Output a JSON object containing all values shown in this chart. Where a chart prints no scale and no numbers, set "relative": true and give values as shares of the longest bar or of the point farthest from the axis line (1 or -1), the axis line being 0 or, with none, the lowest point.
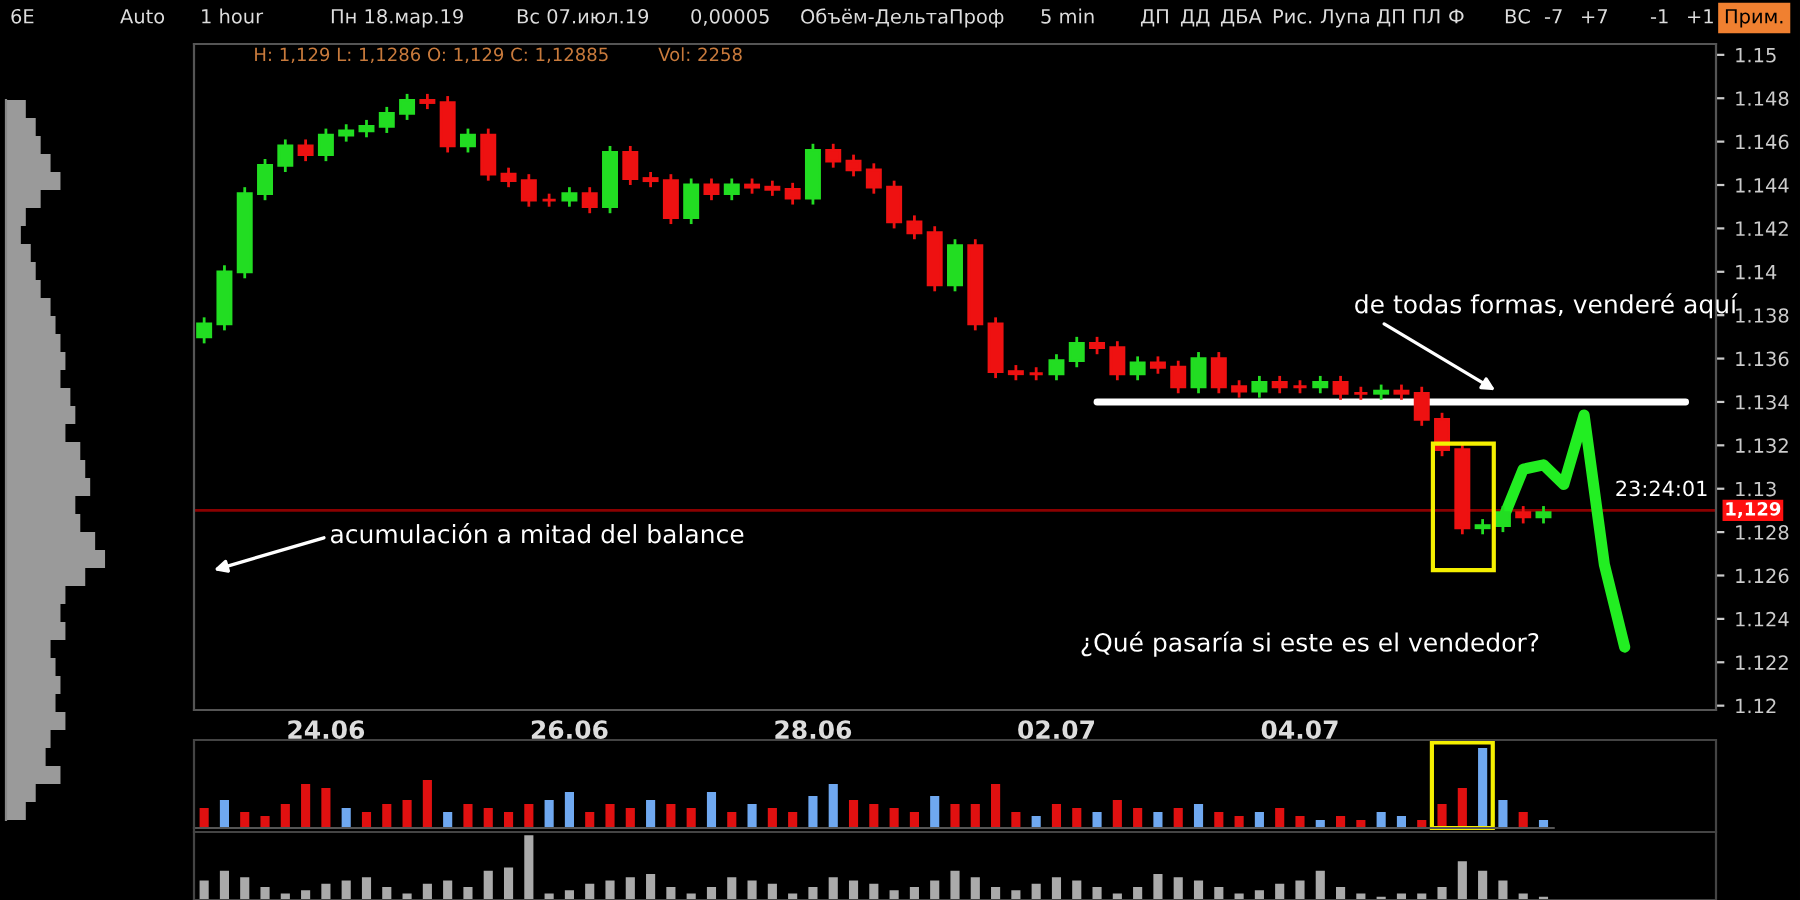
{
  "chart_data": [
    {
      "type": "other",
      "annotations": [
        "6E",
        "Auto",
        "1 hour",
        "Пн 18.мар.19",
        "Вс 07.июл.19",
        "0,00005",
        "Объём-ДельтаПроф",
        "5 min",
        "ДП",
        "ДД",
        "ДБА",
        "Рис.",
        "Лупа",
        "ДП",
        "ПЛ",
        "Ф",
        "ВС",
        "-7",
        "+7",
        "-1",
        "+1",
        "Прим."
      ]
    },
    {
      "type": "candlestick",
      "categories": [
        null,
        null,
        null,
        null,
        null,
        null,
        "24.06",
        null,
        null,
        null,
        null,
        null,
        null,
        null,
        null,
        null,
        null,
        null,
        "26.06",
        null,
        null,
        null,
        null,
        null,
        null,
        null,
        null,
        null,
        null,
        null,
        "28.06",
        null,
        null,
        null,
        null,
        null,
        null,
        null,
        null,
        null,
        null,
        null,
        "02.07",
        null,
        null,
        null,
        null,
        null,
        null,
        null,
        null,
        null,
        null,
        null,
        "04.07",
        null,
        null,
        null,
        null,
        null,
        null,
        null,
        null,
        null,
        null,
        null,
        null,
        null,
        null,
        null,
        null,
        null,
        null,
        null,
        null
      ],
      "ohlc": [
        [
          1.137,
          1.1379,
          1.1367,
          1.1376
        ],
        [
          1.1376,
          1.1403,
          1.1373,
          1.14
        ],
        [
          1.14,
          1.1439,
          1.1397,
          1.1436
        ],
        [
          1.1436,
          1.1452,
          1.1433,
          1.1449
        ],
        [
          1.1449,
          1.1461,
          1.1446,
          1.1458
        ],
        [
          1.1458,
          1.1461,
          1.1451,
          1.1454
        ],
        [
          1.1454,
          1.1466,
          1.1451,
          1.1463
        ],
        [
          1.1463,
          1.1468,
          1.146,
          1.1465
        ],
        [
          1.1465,
          1.147,
          1.1462,
          1.1467
        ],
        [
          1.1467,
          1.1476,
          1.1464,
          1.1473
        ],
        [
          1.1473,
          1.1482,
          1.147,
          1.1479
        ],
        [
          1.1479,
          1.1482,
          1.1475,
          1.1478
        ],
        [
          1.1478,
          1.1481,
          1.1455,
          1.1458
        ],
        [
          1.1458,
          1.1466,
          1.1455,
          1.1463
        ],
        [
          1.1463,
          1.1466,
          1.1442,
          1.1445
        ],
        [
          1.1445,
          1.1448,
          1.1439,
          1.1442
        ],
        [
          1.1442,
          1.1445,
          1.143,
          1.1433
        ],
        [
          1.1433,
          1.1436,
          1.143,
          1.1433
        ],
        [
          1.1433,
          1.1439,
          1.143,
          1.1436
        ],
        [
          1.1436,
          1.1439,
          1.1427,
          1.143
        ],
        [
          1.143,
          1.1458,
          1.1427,
          1.1455
        ],
        [
          1.1455,
          1.1458,
          1.144,
          1.1443
        ],
        [
          1.1443,
          1.1446,
          1.1439,
          1.1442
        ],
        [
          1.1442,
          1.1445,
          1.1422,
          1.1425
        ],
        [
          1.1425,
          1.1443,
          1.1422,
          1.144
        ],
        [
          1.144,
          1.1443,
          1.1433,
          1.1436
        ],
        [
          1.1436,
          1.1443,
          1.1433,
          1.144
        ],
        [
          1.144,
          1.1443,
          1.1436,
          1.1439
        ],
        [
          1.1439,
          1.1442,
          1.1435,
          1.1438
        ],
        [
          1.1438,
          1.1441,
          1.1431,
          1.1434
        ],
        [
          1.1434,
          1.1459,
          1.1431,
          1.1456
        ],
        [
          1.1456,
          1.1459,
          1.1448,
          1.1451
        ],
        [
          1.1451,
          1.1454,
          1.1444,
          1.1447
        ],
        [
          1.1447,
          1.145,
          1.1436,
          1.1439
        ],
        [
          1.1439,
          1.1442,
          1.142,
          1.1423
        ],
        [
          1.1423,
          1.1426,
          1.1415,
          1.1418
        ],
        [
          1.1418,
          1.1421,
          1.1391,
          1.1394
        ],
        [
          1.1394,
          1.1415,
          1.1391,
          1.1412
        ],
        [
          1.1412,
          1.1415,
          1.1373,
          1.1376
        ],
        [
          1.1376,
          1.1379,
          1.1351,
          1.1354
        ],
        [
          1.1354,
          1.1357,
          1.135,
          1.1353
        ],
        [
          1.1353,
          1.1356,
          1.135,
          1.1353
        ],
        [
          1.1353,
          1.1362,
          1.135,
          1.1359
        ],
        [
          1.1359,
          1.137,
          1.1356,
          1.1367
        ],
        [
          1.1367,
          1.137,
          1.1362,
          1.1365
        ],
        [
          1.1365,
          1.1368,
          1.135,
          1.1353
        ],
        [
          1.1353,
          1.1361,
          1.135,
          1.1358
        ],
        [
          1.1358,
          1.1361,
          1.1353,
          1.1356
        ],
        [
          1.1356,
          1.1359,
          1.1344,
          1.1347
        ],
        [
          1.1347,
          1.1363,
          1.1344,
          1.136
        ],
        [
          1.136,
          1.1363,
          1.1344,
          1.1347
        ],
        [
          1.1347,
          1.135,
          1.1342,
          1.1345
        ],
        [
          1.1345,
          1.1352,
          1.1342,
          1.1349
        ],
        [
          1.1349,
          1.1352,
          1.1344,
          1.1347
        ],
        [
          1.1347,
          1.135,
          1.1344,
          1.1347
        ],
        [
          1.1347,
          1.1352,
          1.1344,
          1.1349
        ],
        [
          1.1349,
          1.1352,
          1.1341,
          1.1344
        ],
        [
          1.1344,
          1.1347,
          1.1341,
          1.1344
        ],
        [
          1.1344,
          1.1348,
          1.1341,
          1.1345
        ],
        [
          1.1345,
          1.1348,
          1.1341,
          1.1344
        ],
        [
          1.1344,
          1.1347,
          1.1329,
          1.1332
        ],
        [
          1.1332,
          1.1335,
          1.1315,
          1.1318
        ],
        [
          1.1318,
          1.1321,
          1.1279,
          1.1282
        ],
        [
          1.1282,
          1.1286,
          1.1279,
          1.1283
        ],
        [
          1.1283,
          1.1292,
          1.128,
          1.1289
        ],
        [
          1.1289,
          1.1292,
          1.1284,
          1.1287
        ],
        [
          1.1287,
          1.1292,
          1.1284,
          1.1289
        ],
        null,
        null,
        null,
        null,
        null,
        null,
        null,
        null
      ],
      "colors": [
        "#22dd22",
        "#22dd22",
        "#22dd22",
        "#22dd22",
        "#22dd22",
        "#ee1111",
        "#22dd22",
        "#22dd22",
        "#22dd22",
        "#22dd22",
        "#22dd22",
        "#ee1111",
        "#ee1111",
        "#22dd22",
        "#ee1111",
        "#ee1111",
        "#ee1111",
        "#ee1111",
        "#22dd22",
        "#ee1111",
        "#22dd22",
        "#ee1111",
        "#ee1111",
        "#ee1111",
        "#22dd22",
        "#ee1111",
        "#22dd22",
        "#ee1111",
        "#ee1111",
        "#ee1111",
        "#22dd22",
        "#ee1111",
        "#ee1111",
        "#ee1111",
        "#ee1111",
        "#ee1111",
        "#ee1111",
        "#22dd22",
        "#ee1111",
        "#ee1111",
        "#ee1111",
        "#ee1111",
        "#22dd22",
        "#22dd22",
        "#ee1111",
        "#ee1111",
        "#22dd22",
        "#ee1111",
        "#ee1111",
        "#22dd22",
        "#ee1111",
        "#ee1111",
        "#22dd22",
        "#ee1111",
        "#ee1111",
        "#22dd22",
        "#ee1111",
        "#ee1111",
        "#22dd22",
        "#ee1111",
        "#ee1111",
        "#ee1111",
        "#ee1111",
        "#22dd22",
        "#22dd22",
        "#ee1111",
        "#22dd22",
        null,
        null,
        null,
        null,
        null,
        null,
        null,
        null
      ],
      "series": [
        {
          "type": "line",
          "color": "#ffffff",
          "values": [
            null,
            null,
            null,
            null,
            null,
            null,
            null,
            null,
            null,
            null,
            null,
            null,
            null,
            null,
            null,
            null,
            null,
            null,
            null,
            null,
            null,
            null,
            null,
            null,
            null,
            null,
            null,
            null,
            null,
            null,
            null,
            null,
            null,
            null,
            null,
            null,
            null,
            null,
            null,
            null,
            null,
            null,
            null,
            null,
            1.134,
            1.134,
            1.134,
            1.134,
            1.134,
            1.134,
            1.134,
            1.134,
            1.134,
            1.134,
            1.134,
            1.134,
            1.134,
            1.134,
            1.134,
            1.134,
            1.134,
            1.134,
            1.134,
            1.134,
            1.134,
            1.134,
            1.134,
            1.134,
            1.134,
            1.134,
            1.134,
            1.134,
            1.134,
            1.134,
            null
          ]
        },
        {
          "type": "line",
          "color": "#22ee22",
          "values": [
            null,
            null,
            null,
            null,
            null,
            null,
            null,
            null,
            null,
            null,
            null,
            null,
            null,
            null,
            null,
            null,
            null,
            null,
            null,
            null,
            null,
            null,
            null,
            null,
            null,
            null,
            null,
            null,
            null,
            null,
            null,
            null,
            null,
            null,
            null,
            null,
            null,
            null,
            null,
            null,
            null,
            null,
            null,
            null,
            null,
            null,
            null,
            null,
            null,
            null,
            null,
            null,
            null,
            null,
            null,
            null,
            null,
            null,
            null,
            null,
            null,
            null,
            null,
            null,
            1.1286,
            1.1309,
            1.1311,
            1.1302,
            1.1334,
            1.1265,
            1.1227,
            null,
            null,
            null,
            null
          ]
        }
      ],
      "ylim": [
        1.1198,
        1.1505
      ],
      "yticks": [
        1.12,
        1.122,
        1.124,
        1.126,
        1.128,
        1.13,
        1.132,
        1.134,
        1.136,
        1.138,
        1.14,
        1.142,
        1.144,
        1.146,
        1.148,
        1.15
      ],
      "ref_lines": [
        {
          "axis": "y",
          "value": 1.129,
          "label": "1,129",
          "color": "#8b0000"
        }
      ],
      "annotations": [
        "acumulación a mitad del balance",
        "de todas formas, venderé aquí",
        "¿Qué pasaría si este es el vendedor?",
        "23:24:01",
        "H: 1,129 L: 1,1286 O: 1,129 C: 1,12885",
        "Vol: 2258"
      ]
    },
    {
      "type": "bar",
      "relative": true,
      "categories": [
        null,
        null,
        null,
        null,
        null,
        null,
        null,
        null,
        null,
        null,
        null,
        null,
        null,
        null,
        null,
        null,
        null,
        null,
        null,
        null,
        null,
        null,
        null,
        null,
        null,
        null,
        null,
        null,
        null,
        null,
        null,
        null,
        null,
        null,
        null,
        null,
        null,
        null,
        null,
        null,
        null,
        null,
        null,
        null,
        null,
        null,
        null,
        null,
        null,
        null,
        null,
        null,
        null,
        null,
        null,
        null,
        null,
        null,
        null,
        null,
        null,
        null,
        null,
        null,
        null,
        null,
        null
      ],
      "values": [
        0.25,
        0.35,
        0.2,
        0.15,
        0.3,
        0.55,
        0.5,
        0.25,
        0.2,
        0.3,
        0.35,
        0.6,
        0.2,
        0.3,
        0.25,
        0.2,
        0.3,
        0.35,
        0.45,
        0.2,
        0.3,
        0.25,
        0.35,
        0.3,
        0.25,
        0.45,
        0.2,
        0.3,
        0.25,
        0.2,
        0.4,
        0.55,
        0.35,
        0.3,
        0.25,
        0.2,
        0.4,
        0.3,
        0.3,
        0.55,
        0.2,
        0.15,
        0.3,
        0.25,
        0.2,
        0.35,
        0.25,
        0.2,
        0.25,
        0.3,
        0.2,
        0.15,
        0.2,
        0.25,
        0.15,
        0.1,
        0.15,
        0.1,
        0.2,
        0.15,
        0.1,
        0.3,
        0.5,
        1.0,
        0.35,
        0.2,
        0.1
      ],
      "colors": [
        "#e01010",
        "#6fa8f0",
        "#e01010",
        "#e01010",
        "#e01010",
        "#e01010",
        "#e01010",
        "#6fa8f0",
        "#e01010",
        "#e01010",
        "#e01010",
        "#e01010",
        "#6fa8f0",
        "#e01010",
        "#e01010",
        "#e01010",
        "#e01010",
        "#6fa8f0",
        "#6fa8f0",
        "#e01010",
        "#e01010",
        "#e01010",
        "#6fa8f0",
        "#e01010",
        "#e01010",
        "#6fa8f0",
        "#e01010",
        "#6fa8f0",
        "#e01010",
        "#e01010",
        "#6fa8f0",
        "#6fa8f0",
        "#e01010",
        "#e01010",
        "#e01010",
        "#e01010",
        "#6fa8f0",
        "#e01010",
        "#e01010",
        "#e01010",
        "#e01010",
        "#6fa8f0",
        "#e01010",
        "#e01010",
        "#6fa8f0",
        "#e01010",
        "#e01010",
        "#6fa8f0",
        "#e01010",
        "#6fa8f0",
        "#e01010",
        "#e01010",
        "#6fa8f0",
        "#e01010",
        "#e01010",
        "#6fa8f0",
        "#e01010",
        "#e01010",
        "#6fa8f0",
        "#6fa8f0",
        "#e01010",
        "#e01010",
        "#e01010",
        "#6fa8f0",
        "#6fa8f0",
        "#e01010",
        "#6fa8f0"
      ]
    },
    {
      "type": "bar",
      "relative": true,
      "color": "#aaaaaa",
      "categories": [
        null,
        null,
        null,
        null,
        null,
        null,
        null,
        null,
        null,
        null,
        null,
        null,
        null,
        null,
        null,
        null,
        null,
        null,
        null,
        null,
        null,
        null,
        null,
        null,
        null,
        null,
        null,
        null,
        null,
        null,
        null,
        null,
        null,
        null,
        null,
        null,
        null,
        null,
        null,
        null,
        null,
        null,
        null,
        null,
        null,
        null,
        null,
        null,
        null,
        null,
        null,
        null,
        null,
        null,
        null,
        null,
        null,
        null,
        null,
        null,
        null,
        null,
        null,
        null,
        null,
        null,
        null
      ],
      "values": [
        0.3,
        0.45,
        0.35,
        0.2,
        0.1,
        0.15,
        0.25,
        0.3,
        0.35,
        0.2,
        0.1,
        0.25,
        0.3,
        0.2,
        0.45,
        0.5,
        1.0,
        0.1,
        0.15,
        0.25,
        0.3,
        0.35,
        0.4,
        0.2,
        0.1,
        0.2,
        0.35,
        0.3,
        0.25,
        0.1,
        0.2,
        0.35,
        0.3,
        0.25,
        0.15,
        0.2,
        0.3,
        0.45,
        0.35,
        0.2,
        0.15,
        0.25,
        0.35,
        0.3,
        0.2,
        0.1,
        0.2,
        0.4,
        0.35,
        0.3,
        0.2,
        0.1,
        0.15,
        0.25,
        0.3,
        0.45,
        0.2,
        0.1,
        0.05,
        0.1,
        0.1,
        0.2,
        0.6,
        0.45,
        0.3,
        0.1,
        0.05
      ]
    },
    {
      "type": "bar",
      "relative": true,
      "orientation": "horizontal",
      "color": "#9a9a9a",
      "categories": [
        null,
        null,
        null,
        null,
        null,
        null,
        null,
        null,
        null,
        null,
        null,
        null,
        null,
        null,
        null,
        null,
        null,
        null,
        null,
        null,
        null,
        null,
        null,
        null,
        null,
        null,
        null,
        null,
        null,
        null,
        null,
        null,
        null,
        null,
        null,
        null,
        null,
        null,
        null,
        null
      ],
      "values": [
        0.2,
        0.3,
        0.35,
        0.45,
        0.55,
        0.35,
        0.2,
        0.15,
        0.25,
        0.3,
        0.35,
        0.45,
        0.5,
        0.55,
        0.6,
        0.55,
        0.65,
        0.7,
        0.6,
        0.75,
        0.8,
        0.85,
        0.7,
        0.75,
        0.9,
        1.0,
        0.8,
        0.6,
        0.55,
        0.6,
        0.45,
        0.5,
        0.55,
        0.5,
        0.6,
        0.45,
        0.4,
        0.55,
        0.3,
        0.2
      ]
    }
  ]
}
